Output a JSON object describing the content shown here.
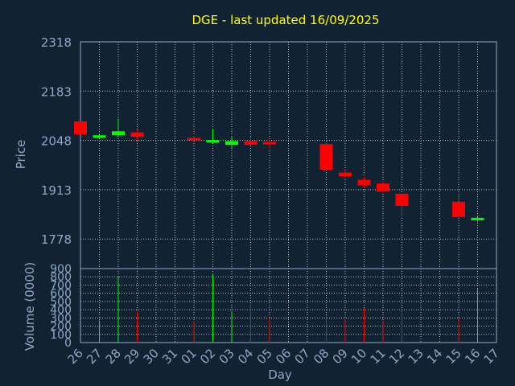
{
  "chart_data": {
    "type": "candlestick",
    "title": "DGE - last updated 16/09/2025",
    "xlabel": "Day",
    "ylabel_price": "Price",
    "ylabel_volume": "Volume (0000)",
    "colors": {
      "background": "#112233",
      "up": "#00ff00",
      "down": "#ff0000",
      "title": "#ffff00",
      "text": "#8fa8c8",
      "grid": "#ffffff"
    },
    "x_ticks": [
      "26",
      "27",
      "28",
      "29",
      "30",
      "31",
      "01",
      "02",
      "03",
      "04",
      "05",
      "06",
      "07",
      "08",
      "09",
      "10",
      "11",
      "12",
      "13",
      "14",
      "15",
      "16",
      "17"
    ],
    "price_ylim": [
      1697,
      2318
    ],
    "price_ticks": [
      1778,
      1913,
      2048,
      2183,
      2318
    ],
    "volume_ylim": [
      0,
      900
    ],
    "volume_ticks": [
      0,
      100,
      200,
      300,
      400,
      500,
      600,
      700,
      800,
      900
    ],
    "candles": [
      {
        "day": "26",
        "open": 2100,
        "high": 2100,
        "low": 2065,
        "close": 2065
      },
      {
        "day": "27",
        "open": 2055,
        "high": 2067,
        "low": 2052,
        "close": 2062
      },
      {
        "day": "28",
        "open": 2062,
        "high": 2108,
        "low": 2060,
        "close": 2073
      },
      {
        "day": "29",
        "open": 2070,
        "high": 2078,
        "low": 2048,
        "close": 2058
      },
      {
        "day": "01",
        "open": 2055,
        "high": 2060,
        "low": 2050,
        "close": 2049
      },
      {
        "day": "02",
        "open": 2048,
        "high": 2080,
        "low": 2040,
        "close": 2049
      },
      {
        "day": "03",
        "open": 2036,
        "high": 2060,
        "low": 2028,
        "close": 2046
      },
      {
        "day": "04",
        "open": 2046,
        "high": 2058,
        "low": 2034,
        "close": 2036
      },
      {
        "day": "05",
        "open": 2044,
        "high": 2050,
        "low": 2024,
        "close": 2042
      },
      {
        "day": "08",
        "open": 2038,
        "high": 2040,
        "low": 1968,
        "close": 1968
      },
      {
        "day": "09",
        "open": 1960,
        "high": 1965,
        "low": 1946,
        "close": 1950
      },
      {
        "day": "10",
        "open": 1940,
        "high": 1948,
        "low": 1920,
        "close": 1925
      },
      {
        "day": "11",
        "open": 1930,
        "high": 1935,
        "low": 1905,
        "close": 1908
      },
      {
        "day": "12",
        "open": 1902,
        "high": 1902,
        "low": 1838,
        "close": 1869
      },
      {
        "day": "15",
        "open": 1880,
        "high": 1880,
        "low": 1840,
        "close": 1838
      },
      {
        "day": "16",
        "open": 1830,
        "high": 1842,
        "low": 1825,
        "close": 1836
      }
    ],
    "volume": [
      {
        "day": "27",
        "value": 270
      },
      {
        "day": "28",
        "value": 800
      },
      {
        "day": "29",
        "value": 370
      },
      {
        "day": "01",
        "value": 250
      },
      {
        "day": "02",
        "value": 830
      },
      {
        "day": "03",
        "value": 380
      },
      {
        "day": "04",
        "value": 470
      },
      {
        "day": "05",
        "value": 300
      },
      {
        "day": "08",
        "value": 330
      },
      {
        "day": "09",
        "value": 290
      },
      {
        "day": "10",
        "value": 420
      },
      {
        "day": "11",
        "value": 270
      },
      {
        "day": "12",
        "value": 390
      },
      {
        "day": "15",
        "value": 300
      },
      {
        "day": "16",
        "value": 650
      }
    ]
  }
}
